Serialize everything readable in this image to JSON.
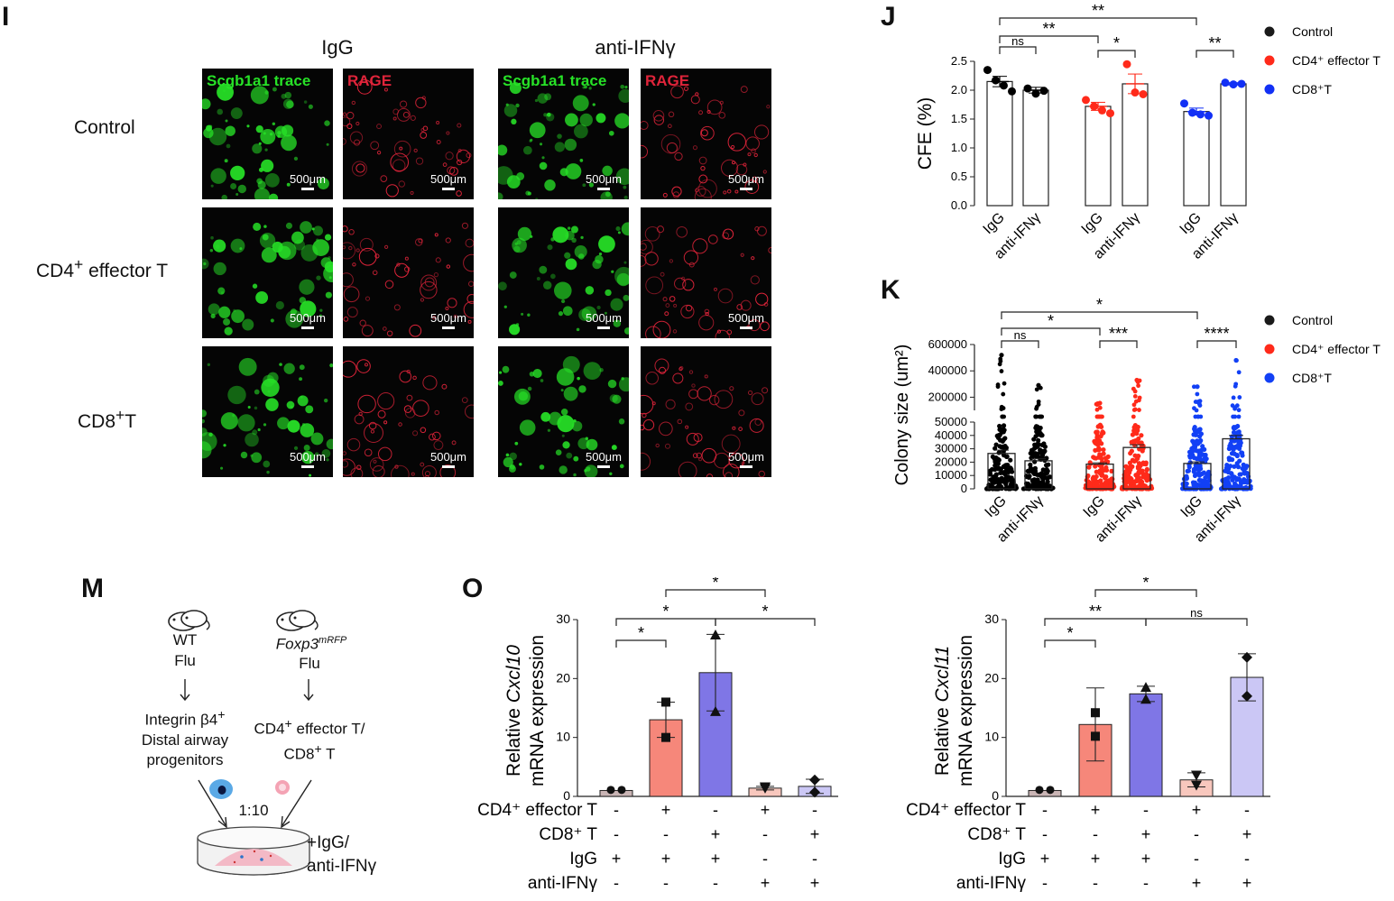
{
  "panel_letters": {
    "i": "I",
    "j": "J",
    "k": "K",
    "m": "M",
    "o": "O"
  },
  "panel_i": {
    "columns": [
      "IgG",
      "anti-IFNγ"
    ],
    "rows": [
      {
        "html": "Control"
      },
      {
        "html": "CD4<sup>+</sup> effector T"
      },
      {
        "html": "CD8<sup>+</sup>T"
      }
    ],
    "stain_green": "Scgb1a1 trace",
    "stain_red": "RAGE",
    "scale_bar": "500μm",
    "colors": {
      "green": "#27e227",
      "red": "#e0243a"
    }
  },
  "panel_m": {
    "wt": "WT",
    "flu1": "Flu",
    "foxp3": "Foxp3",
    "foxp3_sup": "mRFP",
    "flu2": "Flu",
    "progenitors_html": "Integrin β4<sup>+</sup><br>Distal airway<br>progenitors",
    "tcells_html": "CD4<sup>+</sup> effector T/<br>CD8<sup>+</sup> T",
    "ratio": "1:10",
    "treatment_html": "+IgG/<br>anti-IFNγ",
    "icons": [
      "mouse-icon",
      "mouse-icon",
      "progenitor-cell-icon",
      "t-cell-icon",
      "culture-dish-icon",
      "arrow-down-icon"
    ]
  },
  "chart_data": [
    {
      "id": "J",
      "type": "bar",
      "ylabel": "CFE (%)",
      "ylim": [
        0,
        2.5
      ],
      "yticks": [
        "0.0",
        "0.5",
        "1.0",
        "1.5",
        "2.0",
        "2.5"
      ],
      "categories": [
        "IgG",
        "anti-IFNγ",
        "IgG",
        "anti-IFNγ",
        "IgG",
        "anti-IFNγ"
      ],
      "groups": [
        {
          "name": "Control",
          "color": "#000000",
          "bars": [
            {
              "label": "IgG",
              "mean": 2.15,
              "err": 0.09,
              "points": [
                2.35,
                2.17,
                2.08,
                1.98
              ]
            },
            {
              "label": "anti-IFNγ",
              "mean": 2.0,
              "err": 0.05,
              "points": [
                2.03,
                1.94,
                1.99
              ]
            }
          ]
        },
        {
          "name": "CD4⁺ effector T",
          "color": "#ff2a1a",
          "bars": [
            {
              "label": "IgG",
              "mean": 1.72,
              "err": 0.07,
              "points": [
                1.83,
                1.72,
                1.65,
                1.6
              ]
            },
            {
              "label": "anti-IFNγ",
              "mean": 2.11,
              "err": 0.17,
              "points": [
                2.45,
                1.96,
                1.93
              ]
            }
          ]
        },
        {
          "name": "CD8⁺T",
          "color": "#1230f5",
          "bars": [
            {
              "label": "IgG",
              "mean": 1.63,
              "err": 0.06,
              "points": [
                1.77,
                1.61,
                1.58,
                1.56
              ]
            },
            {
              "label": "anti-IFNγ",
              "mean": 2.11,
              "err": 0.02,
              "points": [
                2.13,
                2.1,
                2.11
              ]
            }
          ]
        }
      ],
      "significance": [
        {
          "from": 0,
          "to": 1,
          "label": "ns"
        },
        {
          "from": 0,
          "to": 2,
          "label": "**"
        },
        {
          "from": 0,
          "to": 4,
          "label": "**"
        },
        {
          "from": 2,
          "to": 3,
          "label": "*"
        },
        {
          "from": 4,
          "to": 5,
          "label": "**"
        }
      ],
      "legend": [
        "Control",
        "CD4⁺ effector T",
        "CD8⁺T"
      ],
      "legend_colors": [
        "#1a1a1a",
        "#ff2a1a",
        "#1230f5"
      ]
    },
    {
      "id": "K",
      "type": "bar",
      "ylabel": "Colony size (um²)",
      "yticks_low": [
        "0",
        "10000",
        "20000",
        "30000",
        "40000",
        "50000"
      ],
      "yticks_high": [
        "200000",
        "400000",
        "600000"
      ],
      "ylim_low": [
        0,
        50000
      ],
      "ylim_high": [
        100000,
        600000
      ],
      "categories": [
        "IgG",
        "anti-IFNγ",
        "IgG",
        "anti-IFNγ",
        "IgG",
        "anti-IFNγ"
      ],
      "groups": [
        {
          "name": "Control",
          "color": "#000000",
          "bars": [
            {
              "label": "IgG",
              "mean": 26500,
              "err": 2500,
              "max": 520000
            },
            {
              "label": "anti-IFNγ",
              "mean": 21000,
              "err": 1500,
              "max": 290000
            }
          ]
        },
        {
          "name": "CD4⁺ effector T",
          "color": "#ff2a1a",
          "bars": [
            {
              "label": "IgG",
              "mean": 18500,
              "err": 1000,
              "max": 155000
            },
            {
              "label": "anti-IFNγ",
              "mean": 31000,
              "err": 2000,
              "max": 330000
            }
          ]
        },
        {
          "name": "CD8⁺T",
          "color": "#1240f5",
          "bars": [
            {
              "label": "IgG",
              "mean": 19000,
              "err": 1200,
              "max": 280000
            },
            {
              "label": "anti-IFNγ",
              "mean": 37500,
              "err": 2500,
              "max": 480000
            }
          ]
        }
      ],
      "significance": [
        {
          "from": 0,
          "to": 1,
          "label": "ns"
        },
        {
          "from": 0,
          "to": 2,
          "label": "*"
        },
        {
          "from": 0,
          "to": 4,
          "label": "*"
        },
        {
          "from": 2,
          "to": 3,
          "label": "***"
        },
        {
          "from": 4,
          "to": 5,
          "label": "****"
        }
      ],
      "legend": [
        "Control",
        "CD4⁺ effector T",
        "CD8⁺T"
      ],
      "legend_colors": [
        "#1a1a1a",
        "#ff2a1a",
        "#1240f5"
      ]
    },
    {
      "id": "O-Cxcl10",
      "type": "bar",
      "ylabel_line1": "Relative Cxcl10",
      "ylabel_gene": "Cxcl10",
      "ylabel_line2": "mRNA expression",
      "ylim": [
        0,
        30
      ],
      "yticks": [
        "0",
        "10",
        "20",
        "30"
      ],
      "bars": [
        {
          "mean": 1.0,
          "err": 0,
          "fill": "#c9b4b4",
          "points": [
            1.1,
            1.1
          ],
          "marker": "circle"
        },
        {
          "mean": 13.0,
          "err": 3.0,
          "fill": "#f6877a",
          "points": [
            16.0,
            10.0
          ],
          "marker": "square"
        },
        {
          "mean": 21.0,
          "err": 6.5,
          "fill": "#7f76e6",
          "points": [
            27.4,
            14.4
          ],
          "marker": "triangle"
        },
        {
          "mean": 1.4,
          "err": 0.3,
          "fill": "#f8c7bd",
          "points": [
            1.6,
            1.4
          ],
          "marker": "triangle-down"
        },
        {
          "mean": 1.7,
          "err": 1.2,
          "fill": "#cbc7f5",
          "points": [
            2.8,
            0.7
          ],
          "marker": "diamond"
        }
      ],
      "significance": [
        {
          "from": 0,
          "to": 1,
          "label": "*",
          "level": 0
        },
        {
          "from": 0,
          "to": 2,
          "label": "*",
          "level": 1
        },
        {
          "from": 2,
          "to": 4,
          "label": "*",
          "level": 1
        },
        {
          "from": 1,
          "to": 3,
          "label": "*",
          "level": 2
        }
      ],
      "table": [
        {
          "label": "CD4⁺ effector T",
          "values": [
            "-",
            "+",
            "-",
            "+",
            "-"
          ]
        },
        {
          "label": "CD8⁺ T",
          "values": [
            "-",
            "-",
            "+",
            "-",
            "+"
          ]
        },
        {
          "label": "IgG",
          "values": [
            "+",
            "+",
            "+",
            "-",
            "-"
          ]
        },
        {
          "label": "anti-IFNγ",
          "values": [
            "-",
            "-",
            "-",
            "+",
            "+"
          ]
        }
      ]
    },
    {
      "id": "O-Cxcl11",
      "type": "bar",
      "ylabel_line1": "Relative Cxcl11",
      "ylabel_gene": "Cxcl11",
      "ylabel_line2": "mRNA expression",
      "ylim": [
        0,
        30
      ],
      "yticks": [
        "0",
        "10",
        "20",
        "30"
      ],
      "bars": [
        {
          "mean": 1.0,
          "err": 0,
          "fill": "#c9b4b4",
          "points": [
            1.1,
            1.1
          ],
          "marker": "circle"
        },
        {
          "mean": 12.2,
          "err": 6.2,
          "fill": "#f6877a",
          "points": [
            14.2,
            10.2
          ],
          "marker": "square"
        },
        {
          "mean": 17.4,
          "err": 1.3,
          "fill": "#7f76e6",
          "points": [
            18.5,
            16.5
          ],
          "marker": "triangle"
        },
        {
          "mean": 2.8,
          "err": 1.2,
          "fill": "#f8c7bd",
          "points": [
            3.6,
            1.9
          ],
          "marker": "triangle-down"
        },
        {
          "mean": 20.2,
          "err": 4.0,
          "fill": "#cbc7f5",
          "points": [
            23.6,
            17.0
          ],
          "marker": "diamond"
        }
      ],
      "significance": [
        {
          "from": 0,
          "to": 1,
          "label": "*",
          "level": 0
        },
        {
          "from": 0,
          "to": 2,
          "label": "**",
          "level": 1
        },
        {
          "from": 2,
          "to": 4,
          "label": "ns",
          "level": 1
        },
        {
          "from": 1,
          "to": 3,
          "label": "*",
          "level": 2
        }
      ],
      "table": [
        {
          "label": "CD4⁺ effector T",
          "values": [
            "-",
            "+",
            "-",
            "+",
            "-"
          ]
        },
        {
          "label": "CD8⁺ T",
          "values": [
            "-",
            "-",
            "+",
            "-",
            "+"
          ]
        },
        {
          "label": "IgG",
          "values": [
            "+",
            "+",
            "+",
            "-",
            "-"
          ]
        },
        {
          "label": "anti-IFNγ",
          "values": [
            "-",
            "-",
            "-",
            "+",
            "+"
          ]
        }
      ]
    }
  ]
}
